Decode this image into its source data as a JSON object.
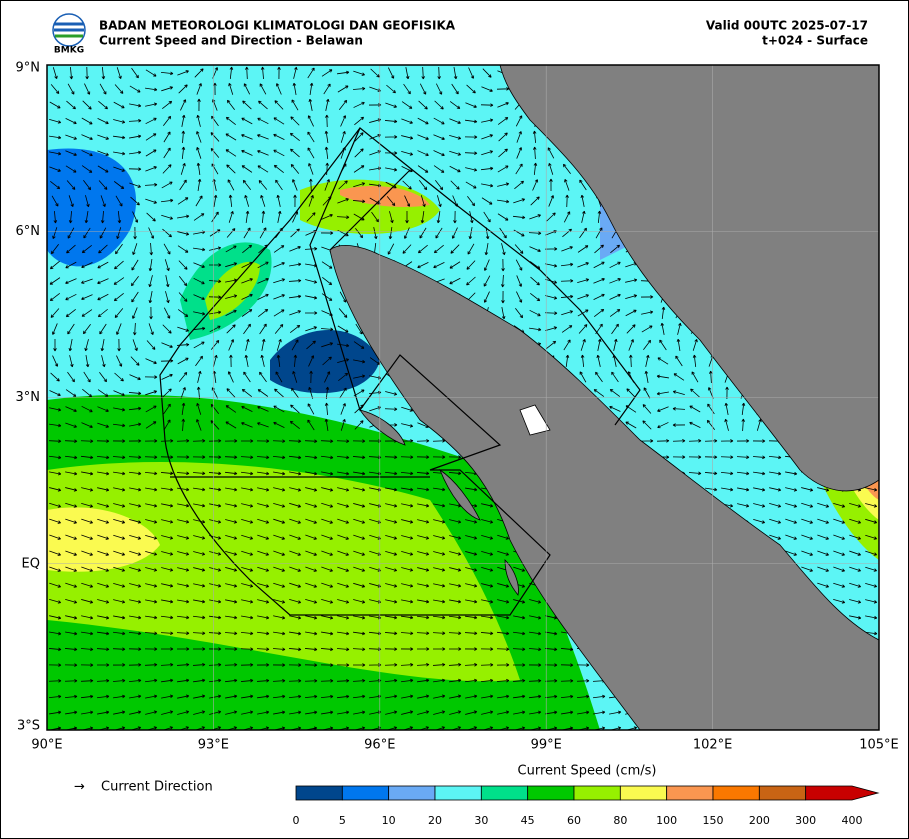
{
  "header": {
    "agency": "BADAN METEOROLOGI KLIMATOLOGI DAN GEOFISIKA",
    "subtitle": "Current Speed and Direction - Belawan",
    "valid": "Valid 00UTC 2025-07-17",
    "forecast": "t+024 - Surface",
    "logo_text": "BMKG"
  },
  "map": {
    "lat_labels": [
      "9°N",
      "6°N",
      "3°N",
      "EQ",
      "3°S"
    ],
    "lon_labels": [
      "90°E",
      "93°E",
      "96°E",
      "99°E",
      "102°E",
      "105°E"
    ]
  },
  "legend": {
    "direction_symbol": "→",
    "direction_label": "Current Direction",
    "colorbar_title": "Current Speed (cm/s)",
    "colorbar_ticks": [
      0,
      5,
      10,
      20,
      30,
      45,
      60,
      80,
      100,
      150,
      200,
      300,
      400
    ],
    "colors": [
      "#00468c",
      "#0077ee",
      "#6aaaf5",
      "#5cf5f5",
      "#00e08a",
      "#00c800",
      "#96f000",
      "#fafa50",
      "#fa9650",
      "#fa7800",
      "#c86414",
      "#c80000"
    ]
  }
}
